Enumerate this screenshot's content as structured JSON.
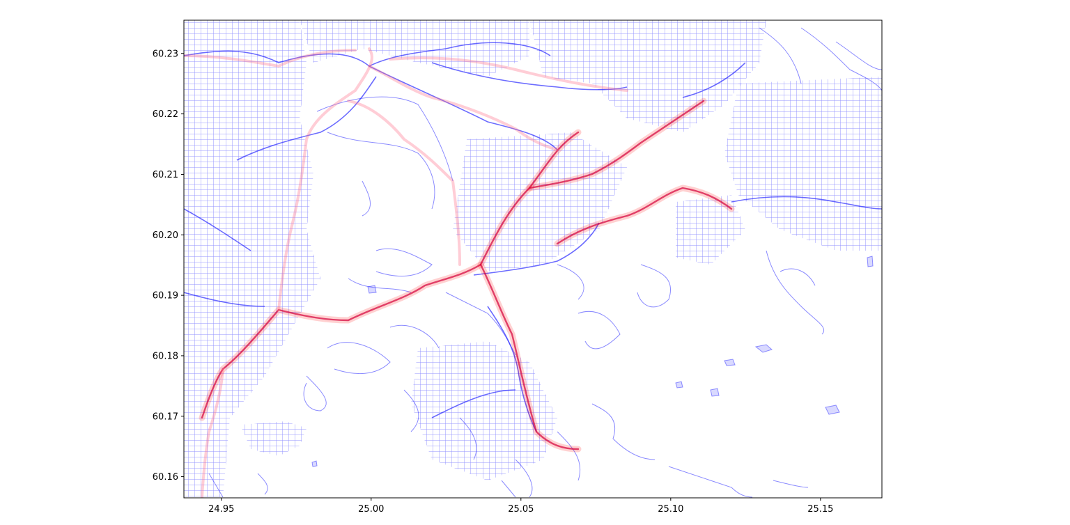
{
  "map": {
    "background": "#ffffff",
    "network_color": "#0000ff",
    "route_color": "#ff0000",
    "x_ticks": [
      "24.95",
      "25.00",
      "25.05",
      "25.10",
      "25.15"
    ],
    "x_tick_values": [
      24.95,
      25.0,
      25.05,
      25.1,
      25.15
    ],
    "y_ticks": [
      "60.23",
      "60.22",
      "60.21",
      "60.20",
      "60.19",
      "60.18",
      "60.17",
      "60.16"
    ],
    "y_tick_values": [
      60.23,
      60.22,
      60.21,
      60.2,
      60.19,
      60.18,
      60.17,
      60.16
    ],
    "x_range": [
      24.9375,
      25.1705
    ],
    "y_range": [
      60.1565,
      60.2355
    ]
  }
}
